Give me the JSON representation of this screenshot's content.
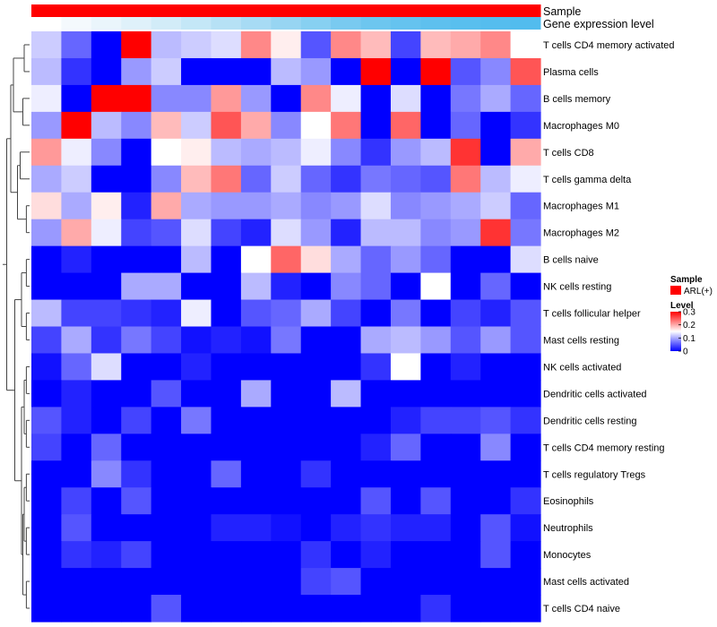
{
  "chart_data": {
    "type": "heatmap",
    "title": "",
    "annotations": [
      {
        "name": "Sample",
        "label": "Sample"
      },
      {
        "name": "gene_expression_level",
        "label": "Gene expression level"
      }
    ],
    "sample_color": "#ff0000",
    "gene_expr_colors": [
      "#ffffff",
      "#f4f9fd",
      "#eaf5fb",
      "#dff1fa",
      "#d2ecf8",
      "#c4e7f7",
      "#b6e1f5",
      "#a7dbf4",
      "#97d5f2",
      "#87d0f1",
      "#79caf0",
      "#6dc6ef",
      "#65c3ef",
      "#5ec0ee",
      "#59bfee",
      "#55bdee",
      "#52bcee",
      "#50bbee"
    ],
    "rows": [
      "T cells CD4 memory activated",
      "Plasma cells",
      "B cells memory",
      "Macrophages M0",
      "T cells CD8",
      "T cells gamma delta",
      "Macrophages M1",
      "Macrophages M2",
      "B cells naive",
      "NK cells resting",
      "T cells follicular helper",
      "Mast cells resting",
      "NK cells activated",
      "Dendritic cells activated",
      "Dendritic cells resting",
      "T cells CD4 memory resting",
      "T cells regulatory  Tregs",
      "Eosinophils",
      "Neutrophils",
      "Monocytes",
      "Mast cells activated",
      "T cells CD4 naive"
    ],
    "values": [
      [
        0.12,
        0.06,
        0.0,
        0.3,
        0.11,
        0.12,
        0.13,
        0.22,
        0.16,
        0.05,
        0.22,
        0.19,
        0.04,
        0.19,
        0.2,
        0.22,
        0.15
      ],
      [
        0.11,
        0.03,
        0.0,
        0.09,
        0.12,
        0.0,
        0.0,
        0.0,
        0.11,
        0.09,
        0.0,
        0.3,
        0.0,
        0.3,
        0.05,
        0.08,
        0.25
      ],
      [
        0.14,
        0.0,
        0.3,
        0.3,
        0.08,
        0.08,
        0.21,
        0.09,
        0.0,
        0.22,
        0.14,
        0.0,
        0.13,
        0.0,
        0.07,
        0.1,
        0.06
      ],
      [
        0.09,
        0.3,
        0.11,
        0.08,
        0.19,
        0.12,
        0.25,
        0.2,
        0.08,
        0.15,
        0.23,
        0.0,
        0.24,
        0.0,
        0.06,
        0.0,
        0.03
      ],
      [
        0.21,
        0.14,
        0.08,
        0.0,
        0.15,
        0.16,
        0.11,
        0.1,
        0.11,
        0.14,
        0.08,
        0.03,
        0.09,
        0.11,
        0.27,
        0.0,
        0.2
      ],
      [
        0.1,
        0.12,
        0.0,
        0.0,
        0.08,
        0.19,
        0.23,
        0.06,
        0.12,
        0.06,
        0.03,
        0.07,
        0.06,
        0.05,
        0.23,
        0.11,
        0.14
      ],
      [
        0.17,
        0.1,
        0.16,
        0.02,
        0.2,
        0.1,
        0.09,
        0.09,
        0.1,
        0.08,
        0.09,
        0.13,
        0.08,
        0.09,
        0.1,
        0.12,
        0.06
      ],
      [
        0.09,
        0.2,
        0.14,
        0.04,
        0.05,
        0.13,
        0.04,
        0.02,
        0.13,
        0.09,
        0.02,
        0.11,
        0.11,
        0.08,
        0.09,
        0.27,
        0.07
      ],
      [
        0.0,
        0.02,
        0.0,
        0.0,
        0.0,
        0.11,
        0.0,
        0.15,
        0.24,
        0.17,
        0.1,
        0.06,
        0.09,
        0.06,
        0.0,
        0.0,
        0.13
      ],
      [
        0.0,
        0.0,
        0.0,
        0.1,
        0.1,
        0.0,
        0.0,
        0.11,
        0.02,
        0.0,
        0.08,
        0.06,
        0.0,
        0.15,
        0.0,
        0.06,
        0.0
      ],
      [
        0.11,
        0.04,
        0.04,
        0.03,
        0.02,
        0.14,
        0.0,
        0.05,
        0.06,
        0.1,
        0.04,
        0.0,
        0.07,
        0.0,
        0.04,
        0.02,
        0.05
      ],
      [
        0.04,
        0.1,
        0.03,
        0.07,
        0.04,
        0.01,
        0.02,
        0.01,
        0.07,
        0.0,
        0.0,
        0.1,
        0.11,
        0.09,
        0.05,
        0.09,
        0.05
      ],
      [
        0.01,
        0.06,
        0.13,
        0.0,
        0.0,
        0.02,
        0.0,
        0.0,
        0.0,
        0.0,
        0.0,
        0.03,
        0.15,
        0.0,
        0.02,
        0.0,
        0.0
      ],
      [
        0.0,
        0.02,
        0.0,
        0.0,
        0.05,
        0.0,
        0.0,
        0.1,
        0.0,
        0.0,
        0.11,
        0.0,
        0.0,
        0.0,
        0.0,
        0.0,
        0.0
      ],
      [
        0.05,
        0.02,
        0.0,
        0.04,
        0.0,
        0.07,
        0.0,
        0.0,
        0.0,
        0.0,
        0.0,
        0.0,
        0.02,
        0.04,
        0.04,
        0.05,
        0.03
      ],
      [
        0.04,
        0.0,
        0.06,
        0.0,
        0.0,
        0.0,
        0.0,
        0.0,
        0.0,
        0.0,
        0.0,
        0.02,
        0.06,
        0.0,
        0.0,
        0.08,
        0.0
      ],
      [
        0.0,
        0.0,
        0.08,
        0.03,
        0.0,
        0.0,
        0.06,
        0.0,
        0.0,
        0.03,
        0.0,
        0.0,
        0.0,
        0.0,
        0.0,
        0.0,
        0.0
      ],
      [
        0.0,
        0.04,
        0.0,
        0.05,
        0.0,
        0.0,
        0.0,
        0.0,
        0.0,
        0.0,
        0.0,
        0.05,
        0.0,
        0.05,
        0.0,
        0.0,
        0.03
      ],
      [
        0.0,
        0.05,
        0.0,
        0.0,
        0.0,
        0.0,
        0.02,
        0.02,
        0.01,
        0.0,
        0.02,
        0.03,
        0.02,
        0.02,
        0.0,
        0.05,
        0.01
      ],
      [
        0.0,
        0.03,
        0.02,
        0.04,
        0.0,
        0.0,
        0.0,
        0.0,
        0.0,
        0.03,
        0.0,
        0.02,
        0.0,
        0.0,
        0.0,
        0.05,
        0.0
      ],
      [
        0.0,
        0.0,
        0.0,
        0.0,
        0.0,
        0.0,
        0.0,
        0.0,
        0.0,
        0.04,
        0.05,
        0.0,
        0.0,
        0.0,
        0.0,
        0.0,
        0.0
      ],
      [
        0.0,
        0.0,
        0.0,
        0.0,
        0.05,
        0.0,
        0.0,
        0.0,
        0.0,
        0.0,
        0.0,
        0.0,
        0.0,
        0.03,
        0.0,
        0.0,
        0.0
      ]
    ],
    "color_scale": {
      "min": 0,
      "mid": 0.15,
      "max": 0.3,
      "low_color": "#0000ff",
      "mid_color": "#ffffff",
      "high_color": "#ff0000"
    },
    "legend": {
      "placement": "right",
      "sample_title": "Sample",
      "sample_entries": [
        {
          "label": "ARL(+)",
          "color": "#ff0000"
        }
      ],
      "level_title": "Level",
      "level_ticks": [
        {
          "value": 0.3,
          "label": "0.3"
        },
        {
          "value": 0.2,
          "label": "0.2"
        },
        {
          "value": 0.1,
          "label": "0.1"
        },
        {
          "value": 0.0,
          "label": "0"
        }
      ]
    },
    "dendrogram": {
      "orientation": "rows",
      "position": "left",
      "heights": {
        "top_root": 1.0,
        "upper_cluster": 0.85,
        "top_pair": 0.7,
        "mid_pair": 0.6,
        "lower_cluster": 0.55,
        "low_pair_a": 0.45,
        "low_pair_b": 0.35,
        "low_pair_c": 0.3,
        "low_pair_d": 0.25,
        "low_pair_e": 0.2,
        "small_merge": 0.12
      }
    }
  }
}
